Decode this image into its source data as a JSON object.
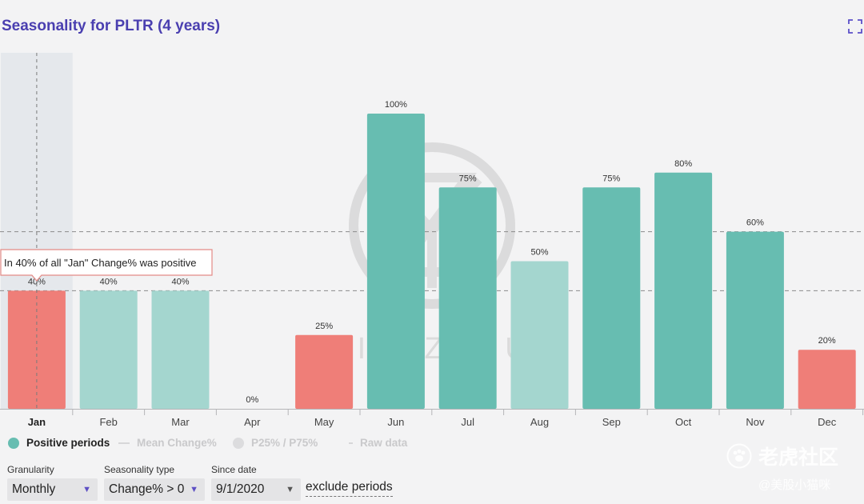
{
  "title": "Seasonality for PLTR (4 years)",
  "icons": {
    "expand": "expand-icon"
  },
  "colors": {
    "positive_dark": "#67bdb1",
    "positive_light": "#a4d6cf",
    "negative": "#ef7e78",
    "highlight_band": "#e5e8ec",
    "title": "#4a3fb0"
  },
  "chart_data": {
    "type": "bar",
    "categories": [
      "Jan",
      "Feb",
      "Mar",
      "Apr",
      "May",
      "Jun",
      "Jul",
      "Aug",
      "Sep",
      "Oct",
      "Nov",
      "Dec"
    ],
    "values": [
      40,
      40,
      40,
      0,
      25,
      100,
      75,
      50,
      75,
      80,
      60,
      20
    ],
    "labels": [
      "40%",
      "40%",
      "40%",
      "0%",
      "25%",
      "100%",
      "75%",
      "50%",
      "75%",
      "80%",
      "60%",
      "20%"
    ],
    "colors": [
      "negative",
      "light",
      "light",
      "light",
      "negative",
      "dark",
      "dark",
      "light",
      "dark",
      "dark",
      "dark",
      "negative"
    ],
    "ylim": [
      0,
      100
    ],
    "reference_lines": [
      40,
      60
    ],
    "highlighted": "Jan",
    "tooltip": "In 40% of all \"Jan\" Change% was positive",
    "watermark_text": "YIAZOU"
  },
  "legend": {
    "items": [
      {
        "label": "Positive periods",
        "color": "#67bdb1",
        "active": true
      },
      {
        "label": "Mean Change%",
        "color": "#d7d7d9",
        "active": false
      },
      {
        "label": "P25% / P75%",
        "color": "#dcdcde",
        "active": false
      },
      {
        "label": "Raw data",
        "color": "#d7d7d9",
        "active": false
      }
    ]
  },
  "controls": {
    "granularity": {
      "label": "Granularity",
      "value": "Monthly"
    },
    "seasonality_type": {
      "label": "Seasonality type",
      "value": "Change% > 0"
    },
    "since_date": {
      "label": "Since date",
      "value": "9/1/2020"
    },
    "exclude_label": "exclude periods"
  },
  "watermark": {
    "brand": "老虎社区",
    "author": "@美股小猫咪"
  }
}
